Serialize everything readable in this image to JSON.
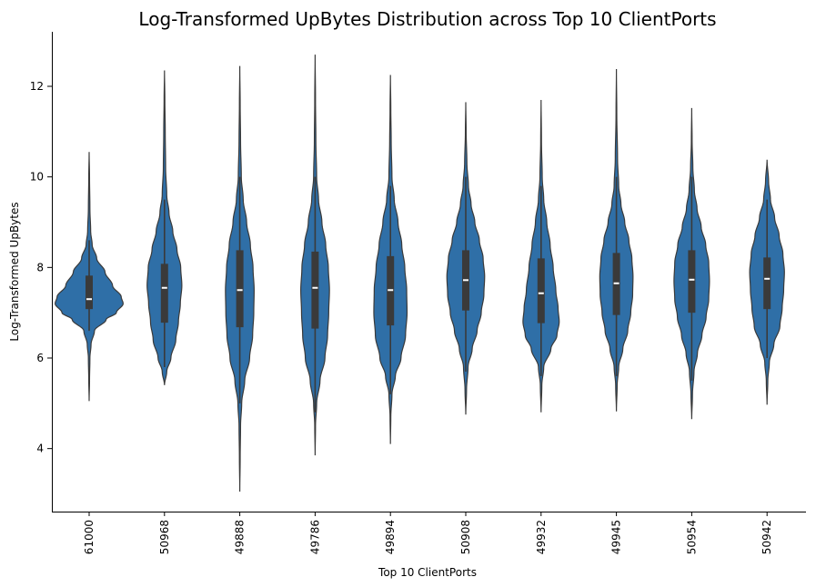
{
  "chart_data": {
    "type": "violin",
    "title": "Log-Transformed UpBytes Distribution across Top 10 ClientPorts",
    "xlabel": "Top 10 ClientPorts",
    "ylabel": "Log-Transformed UpBytes",
    "ylim": [
      2.6,
      13.2
    ],
    "yticks": [
      4,
      6,
      8,
      10,
      12
    ],
    "grid": false,
    "color": "#2f6fa7",
    "edge_color": "#3a3a3a",
    "box_color": "#3a3a3a",
    "median_color": "#ffffff",
    "categories": [
      "61000",
      "50968",
      "49888",
      "49786",
      "49894",
      "50908",
      "49932",
      "49945",
      "50954",
      "50942"
    ],
    "violins": [
      {
        "min": 5.05,
        "max": 10.55,
        "q1": 7.08,
        "median": 7.3,
        "q3": 7.82,
        "whisker_low": 6.6,
        "whisker_high": 8.6,
        "profile": [
          [
            5.05,
            0
          ],
          [
            5.5,
            0.01
          ],
          [
            6.0,
            0.02
          ],
          [
            6.3,
            0.05
          ],
          [
            6.6,
            0.14
          ],
          [
            6.85,
            0.45
          ],
          [
            7.0,
            0.72
          ],
          [
            7.2,
            0.9
          ],
          [
            7.35,
            0.85
          ],
          [
            7.6,
            0.62
          ],
          [
            7.9,
            0.42
          ],
          [
            8.2,
            0.2
          ],
          [
            8.5,
            0.08
          ],
          [
            8.8,
            0.04
          ],
          [
            9.3,
            0.02
          ],
          [
            10.0,
            0.01
          ],
          [
            10.55,
            0
          ]
        ]
      },
      {
        "min": 5.4,
        "max": 12.35,
        "q1": 6.78,
        "median": 7.55,
        "q3": 8.08,
        "whisker_low": 5.8,
        "whisker_high": 9.5,
        "profile": [
          [
            5.4,
            0
          ],
          [
            5.7,
            0.06
          ],
          [
            6.0,
            0.17
          ],
          [
            6.4,
            0.3
          ],
          [
            6.8,
            0.37
          ],
          [
            7.2,
            0.42
          ],
          [
            7.6,
            0.46
          ],
          [
            8.0,
            0.43
          ],
          [
            8.4,
            0.33
          ],
          [
            8.8,
            0.22
          ],
          [
            9.2,
            0.12
          ],
          [
            9.6,
            0.06
          ],
          [
            10.2,
            0.03
          ],
          [
            11.0,
            0.02
          ],
          [
            11.7,
            0.01
          ],
          [
            12.35,
            0
          ]
        ]
      },
      {
        "min": 3.05,
        "max": 12.45,
        "q1": 6.68,
        "median": 7.5,
        "q3": 8.38,
        "whisker_low": 5.0,
        "whisker_high": 10.0,
        "profile": [
          [
            3.05,
            0
          ],
          [
            3.8,
            0.01
          ],
          [
            4.5,
            0.02
          ],
          [
            5.0,
            0.05
          ],
          [
            5.5,
            0.13
          ],
          [
            6.0,
            0.26
          ],
          [
            6.5,
            0.34
          ],
          [
            7.0,
            0.37
          ],
          [
            7.5,
            0.38
          ],
          [
            8.0,
            0.35
          ],
          [
            8.5,
            0.28
          ],
          [
            9.0,
            0.18
          ],
          [
            9.5,
            0.09
          ],
          [
            10.0,
            0.04
          ],
          [
            10.8,
            0.02
          ],
          [
            11.6,
            0.01
          ],
          [
            12.45,
            0
          ]
        ]
      },
      {
        "min": 3.85,
        "max": 12.7,
        "q1": 6.65,
        "median": 7.55,
        "q3": 8.35,
        "whisker_low": 4.8,
        "whisker_high": 10.0,
        "profile": [
          [
            3.85,
            0
          ],
          [
            4.5,
            0.01
          ],
          [
            5.0,
            0.04
          ],
          [
            5.5,
            0.13
          ],
          [
            6.0,
            0.26
          ],
          [
            6.5,
            0.33
          ],
          [
            7.0,
            0.36
          ],
          [
            7.5,
            0.38
          ],
          [
            8.0,
            0.35
          ],
          [
            8.5,
            0.28
          ],
          [
            9.0,
            0.18
          ],
          [
            9.5,
            0.09
          ],
          [
            10.0,
            0.04
          ],
          [
            10.8,
            0.02
          ],
          [
            11.7,
            0.01
          ],
          [
            12.7,
            0
          ]
        ]
      },
      {
        "min": 4.1,
        "max": 12.25,
        "q1": 6.72,
        "median": 7.5,
        "q3": 8.25,
        "whisker_low": 5.2,
        "whisker_high": 9.8,
        "profile": [
          [
            4.1,
            0
          ],
          [
            4.7,
            0.01
          ],
          [
            5.2,
            0.04
          ],
          [
            5.6,
            0.13
          ],
          [
            6.0,
            0.28
          ],
          [
            6.5,
            0.4
          ],
          [
            7.0,
            0.44
          ],
          [
            7.5,
            0.43
          ],
          [
            8.0,
            0.38
          ],
          [
            8.5,
            0.3
          ],
          [
            9.0,
            0.2
          ],
          [
            9.5,
            0.1
          ],
          [
            10.0,
            0.04
          ],
          [
            10.8,
            0.02
          ],
          [
            11.5,
            0.01
          ],
          [
            12.25,
            0
          ]
        ]
      },
      {
        "min": 4.75,
        "max": 11.65,
        "q1": 7.05,
        "median": 7.72,
        "q3": 8.38,
        "whisker_low": 5.7,
        "whisker_high": 10.0,
        "profile": [
          [
            4.75,
            0
          ],
          [
            5.3,
            0.02
          ],
          [
            5.8,
            0.06
          ],
          [
            6.2,
            0.17
          ],
          [
            6.6,
            0.3
          ],
          [
            7.0,
            0.41
          ],
          [
            7.4,
            0.48
          ],
          [
            7.8,
            0.5
          ],
          [
            8.2,
            0.46
          ],
          [
            8.6,
            0.36
          ],
          [
            9.0,
            0.24
          ],
          [
            9.4,
            0.14
          ],
          [
            9.8,
            0.07
          ],
          [
            10.3,
            0.03
          ],
          [
            11.0,
            0.01
          ],
          [
            11.65,
            0
          ]
        ]
      },
      {
        "min": 4.8,
        "max": 11.7,
        "q1": 6.77,
        "median": 7.43,
        "q3": 8.2,
        "whisker_low": 5.6,
        "whisker_high": 9.8,
        "profile": [
          [
            4.8,
            0
          ],
          [
            5.4,
            0.02
          ],
          [
            5.8,
            0.07
          ],
          [
            6.2,
            0.26
          ],
          [
            6.5,
            0.42
          ],
          [
            6.8,
            0.48
          ],
          [
            7.1,
            0.45
          ],
          [
            7.5,
            0.39
          ],
          [
            8.0,
            0.32
          ],
          [
            8.5,
            0.24
          ],
          [
            9.0,
            0.15
          ],
          [
            9.5,
            0.07
          ],
          [
            10.0,
            0.03
          ],
          [
            10.8,
            0.01
          ],
          [
            11.7,
            0
          ]
        ]
      },
      {
        "min": 4.82,
        "max": 12.38,
        "q1": 6.95,
        "median": 7.65,
        "q3": 8.32,
        "whisker_low": 5.6,
        "whisker_high": 10.0,
        "profile": [
          [
            4.82,
            0
          ],
          [
            5.4,
            0.02
          ],
          [
            5.8,
            0.06
          ],
          [
            6.2,
            0.17
          ],
          [
            6.6,
            0.3
          ],
          [
            7.0,
            0.38
          ],
          [
            7.4,
            0.43
          ],
          [
            7.8,
            0.44
          ],
          [
            8.2,
            0.41
          ],
          [
            8.6,
            0.33
          ],
          [
            9.0,
            0.22
          ],
          [
            9.4,
            0.12
          ],
          [
            9.8,
            0.06
          ],
          [
            10.4,
            0.03
          ],
          [
            11.4,
            0.01
          ],
          [
            12.38,
            0
          ]
        ]
      },
      {
        "min": 4.65,
        "max": 11.52,
        "q1": 7.0,
        "median": 7.73,
        "q3": 8.38,
        "whisker_low": 5.5,
        "whisker_high": 10.0,
        "profile": [
          [
            4.65,
            0
          ],
          [
            5.2,
            0.02
          ],
          [
            5.7,
            0.06
          ],
          [
            6.1,
            0.15
          ],
          [
            6.5,
            0.27
          ],
          [
            6.9,
            0.38
          ],
          [
            7.3,
            0.45
          ],
          [
            7.7,
            0.47
          ],
          [
            8.1,
            0.45
          ],
          [
            8.5,
            0.37
          ],
          [
            8.9,
            0.25
          ],
          [
            9.3,
            0.14
          ],
          [
            9.7,
            0.07
          ],
          [
            10.2,
            0.03
          ],
          [
            10.8,
            0.01
          ],
          [
            11.52,
            0
          ]
        ]
      },
      {
        "min": 4.97,
        "max": 10.38,
        "q1": 7.08,
        "median": 7.75,
        "q3": 8.22,
        "whisker_low": 6.0,
        "whisker_high": 9.5,
        "profile": [
          [
            4.97,
            0
          ],
          [
            5.5,
            0.02
          ],
          [
            5.9,
            0.06
          ],
          [
            6.3,
            0.18
          ],
          [
            6.7,
            0.34
          ],
          [
            7.1,
            0.4
          ],
          [
            7.5,
            0.44
          ],
          [
            7.9,
            0.46
          ],
          [
            8.3,
            0.42
          ],
          [
            8.7,
            0.32
          ],
          [
            9.1,
            0.2
          ],
          [
            9.5,
            0.09
          ],
          [
            9.9,
            0.04
          ],
          [
            10.38,
            0
          ]
        ]
      }
    ]
  }
}
